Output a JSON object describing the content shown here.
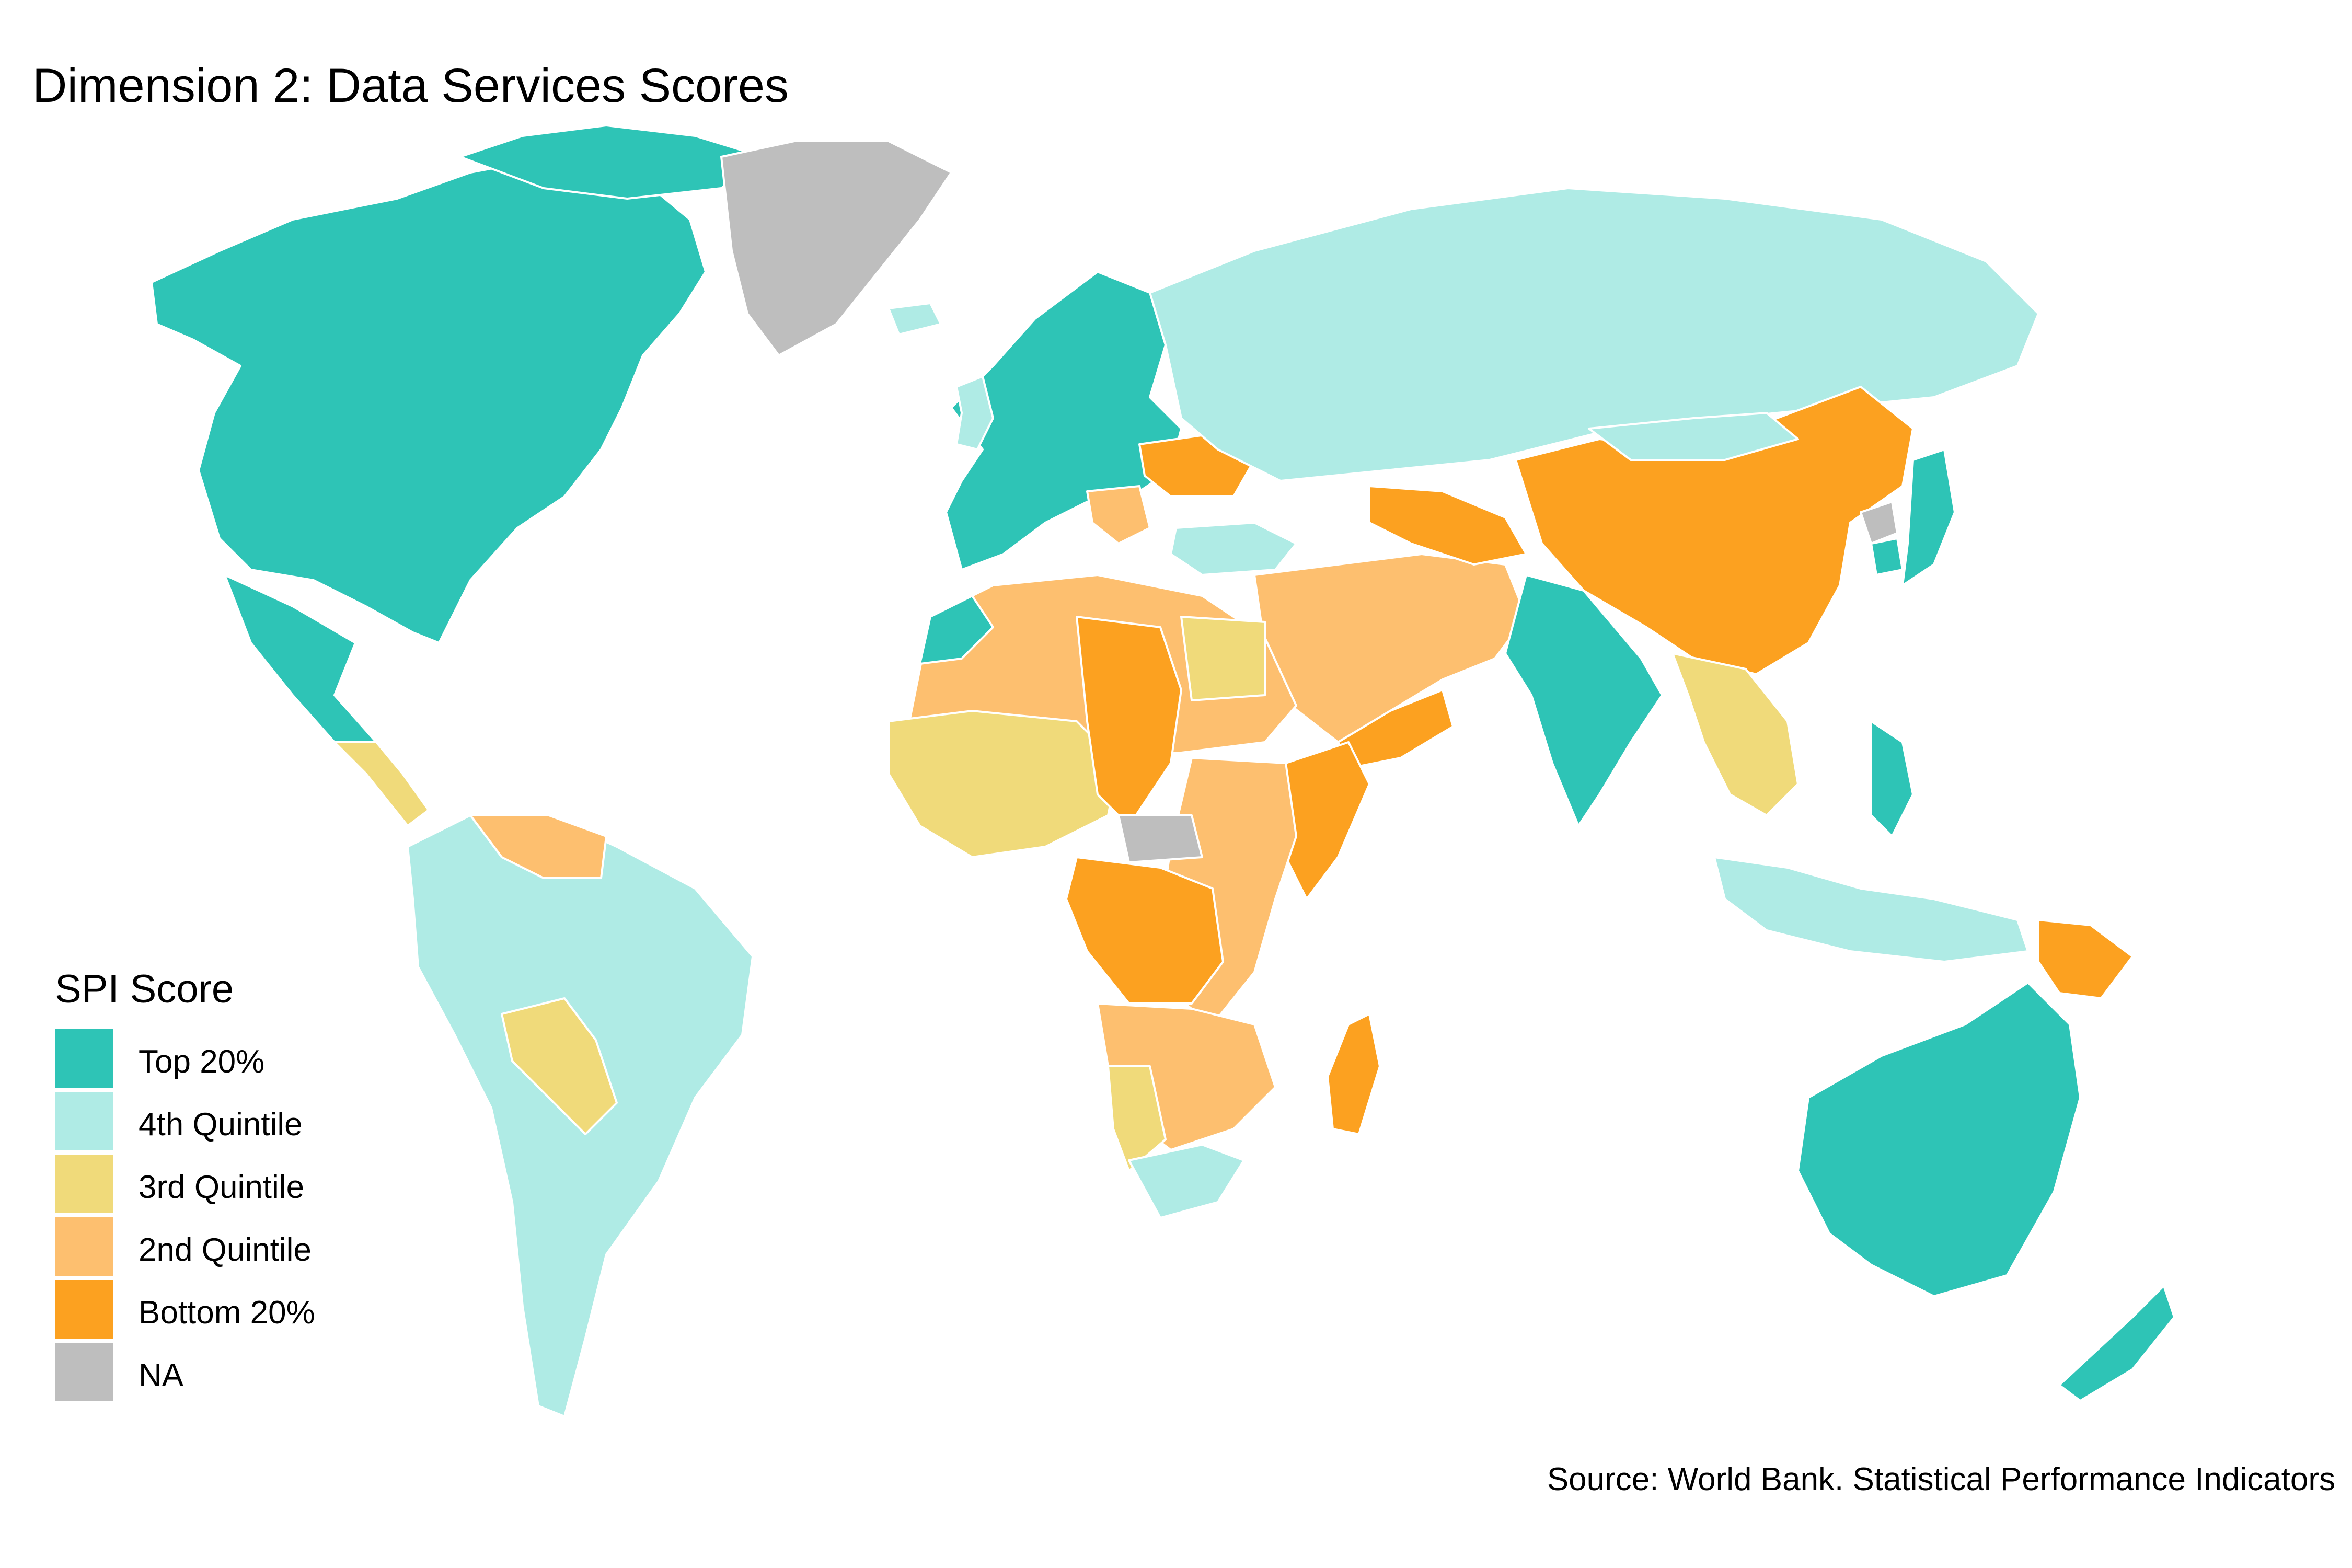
{
  "title": "Dimension 2: Data Services Scores",
  "legend": {
    "title": "SPI Score",
    "items": [
      {
        "key": "top",
        "label": "Top 20%",
        "color": "#2ec4b6"
      },
      {
        "key": "q4",
        "label": "4th Quintile",
        "color": "#afebe5"
      },
      {
        "key": "q3",
        "label": "3rd Quintile",
        "color": "#f0da7a"
      },
      {
        "key": "q2",
        "label": "2nd Quintile",
        "color": "#fdbf6f"
      },
      {
        "key": "bottom",
        "label": "Bottom 20%",
        "color": "#fca120"
      },
      {
        "key": "na",
        "label": "NA",
        "color": "#bebebe"
      }
    ]
  },
  "source": "Source: World Bank. Statistical Performance Indicators"
}
